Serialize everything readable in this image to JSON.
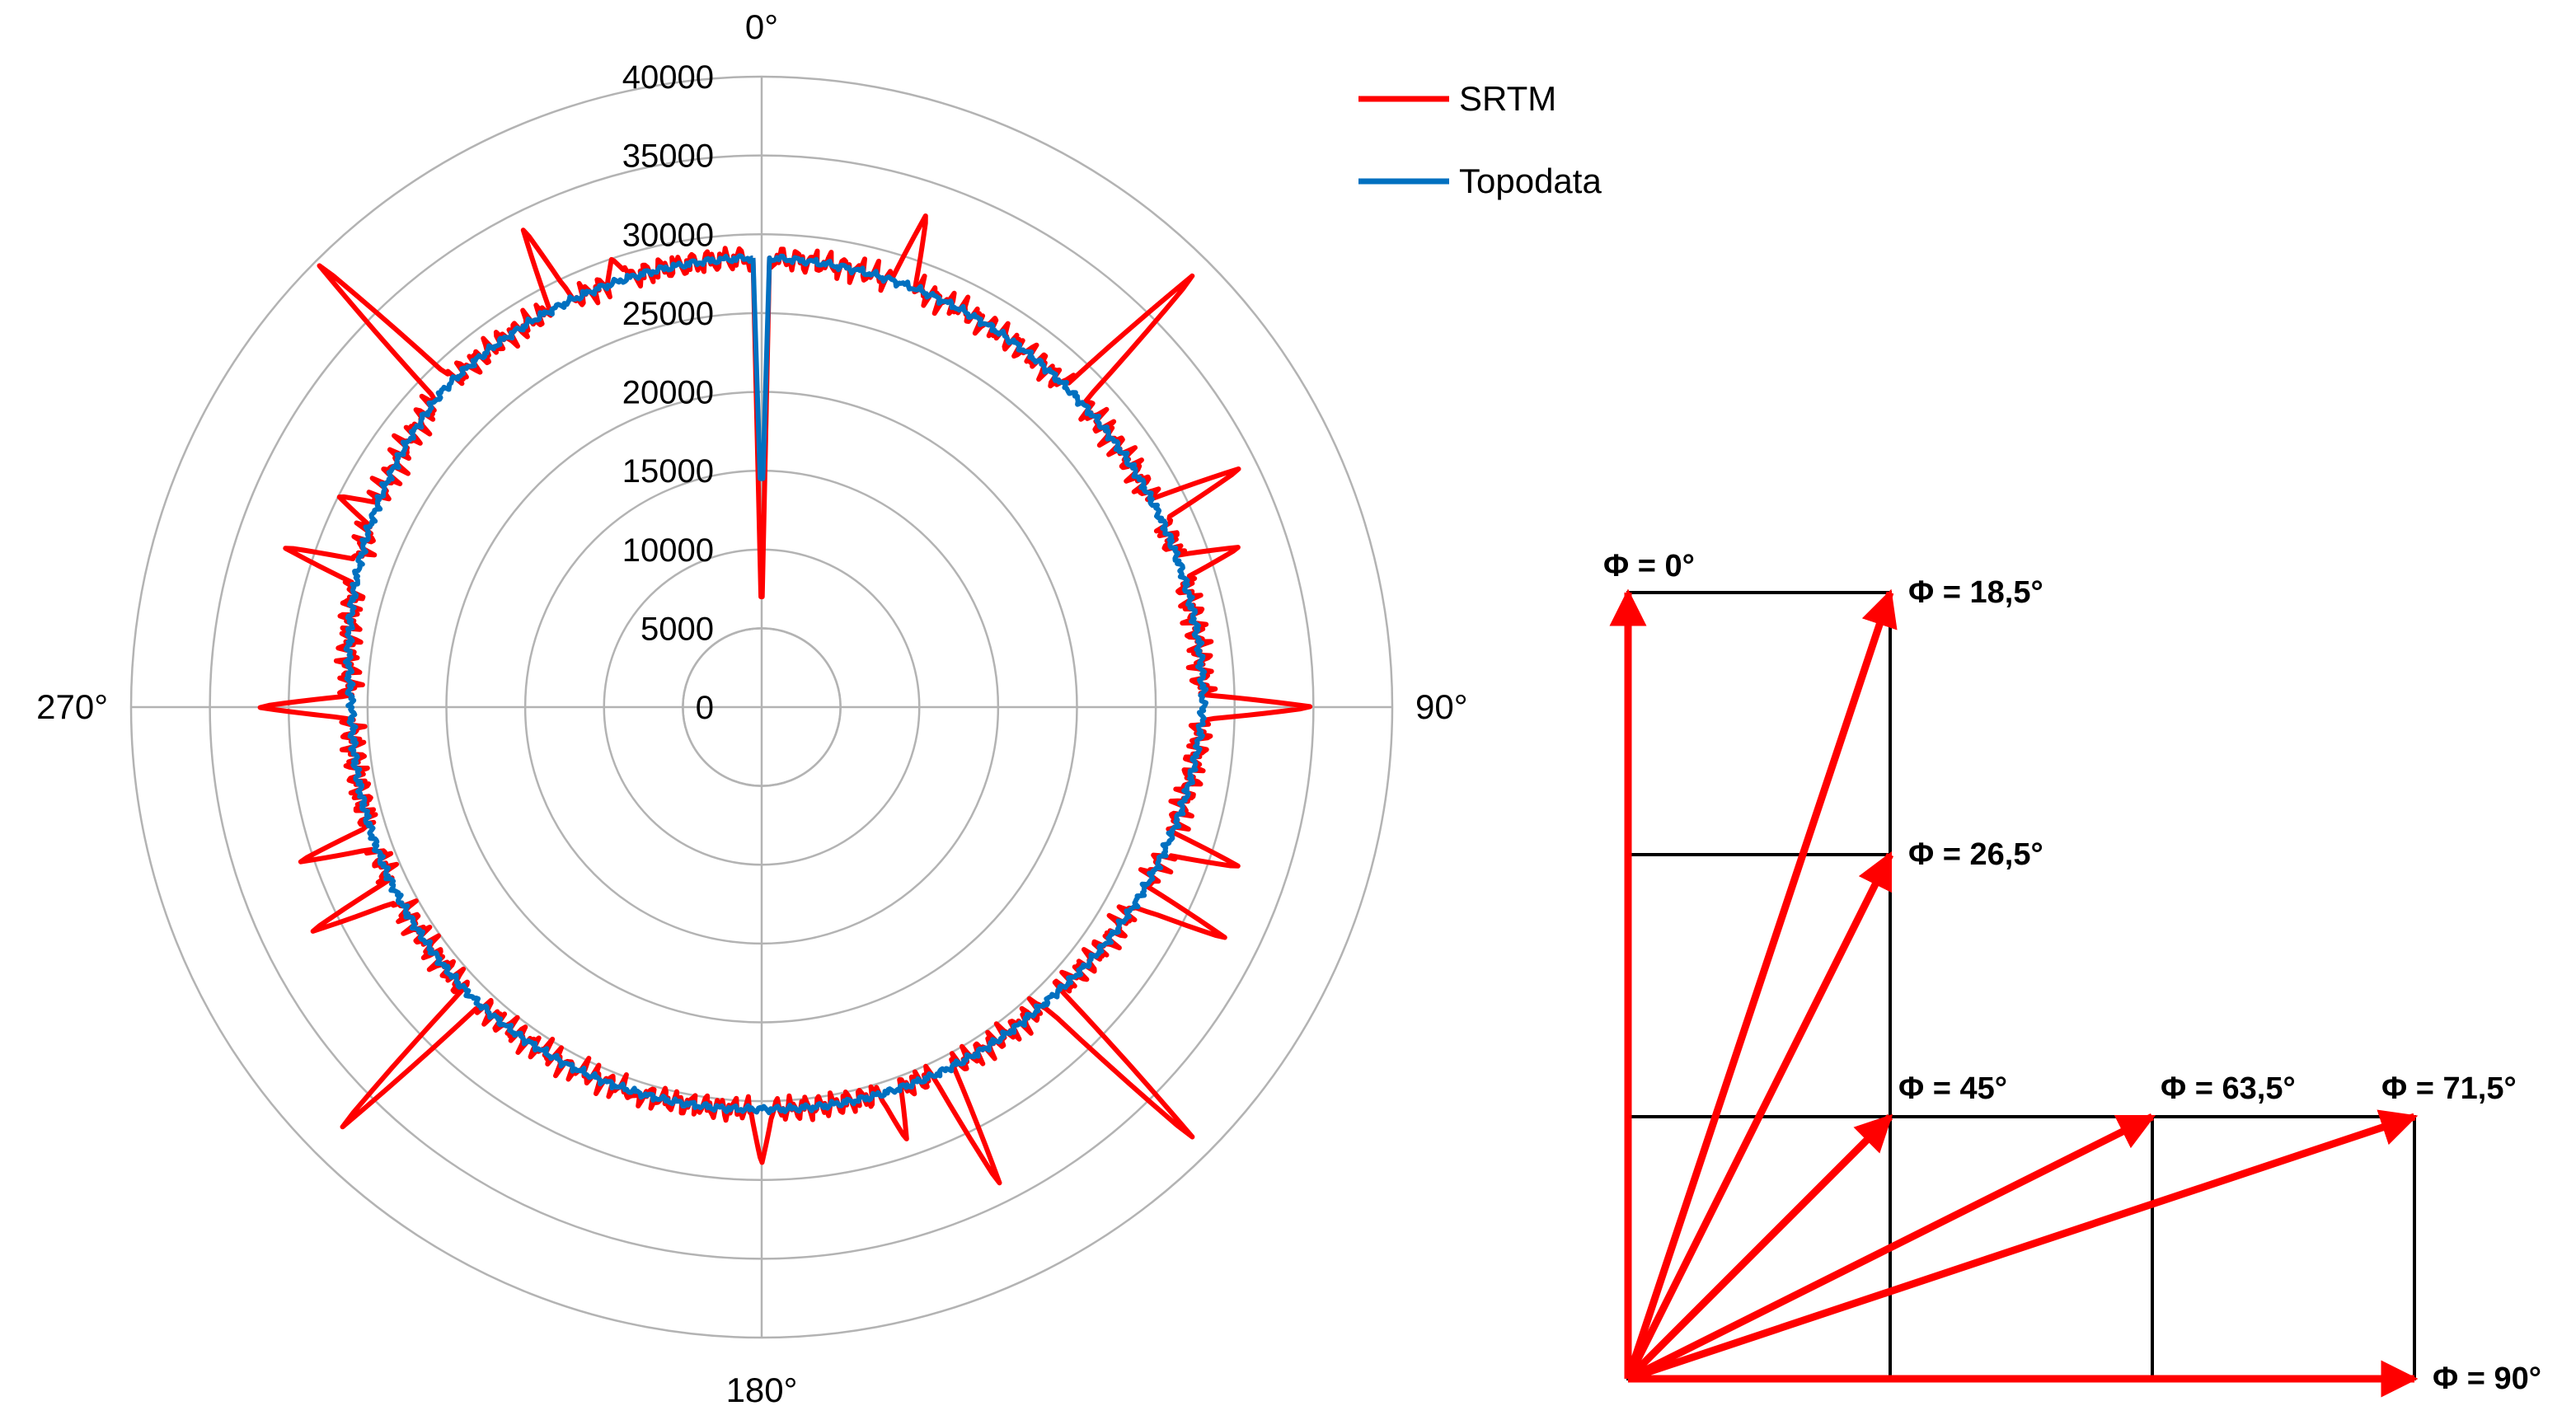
{
  "chart_data": [
    {
      "type": "polar-line",
      "title": "",
      "angle_unit": "degrees",
      "direction": "clockwise",
      "zero_location": "top",
      "radial_range": [
        0,
        40000
      ],
      "radial_ticks": [
        0,
        5000,
        10000,
        15000,
        20000,
        25000,
        30000,
        35000,
        40000
      ],
      "angle_labels": [
        {
          "angle": 0,
          "text": "0°"
        },
        {
          "angle": 90,
          "text": "90°"
        },
        {
          "angle": 180,
          "text": "180°"
        },
        {
          "angle": 270,
          "text": "270°"
        }
      ],
      "legend": {
        "placement": "top-right"
      },
      "baseline": {
        "angles": [
          0,
          45,
          90,
          135,
          180,
          225,
          270,
          315
        ],
        "values": [
          28500,
          28000,
          28000,
          26000,
          25500,
          26000,
          26000,
          28500
        ]
      },
      "series": [
        {
          "name": "SRTM",
          "color": "#ff0000",
          "dip": {
            "angle": 0,
            "value": 7000
          },
          "spikes": [
            {
              "angle": 18.5,
              "value": 33000
            },
            {
              "angle": 26.5,
              "value": 23000
            },
            {
              "angle": 45,
              "value": 39000
            },
            {
              "angle": 56,
              "value": 24000
            },
            {
              "angle": 63.5,
              "value": 34000
            },
            {
              "angle": 71.5,
              "value": 32000
            },
            {
              "angle": 90,
              "value": 35000
            },
            {
              "angle": 108.5,
              "value": 32000
            },
            {
              "angle": 116.5,
              "value": 33000
            },
            {
              "angle": 123.5,
              "value": 26000
            },
            {
              "angle": 135,
              "value": 39000
            },
            {
              "angle": 153.5,
              "value": 34000
            },
            {
              "angle": 161.5,
              "value": 29000
            },
            {
              "angle": 180,
              "value": 29000
            },
            {
              "angle": 198.5,
              "value": 26000
            },
            {
              "angle": 206.5,
              "value": 24000
            },
            {
              "angle": 225,
              "value": 38000
            },
            {
              "angle": 243.5,
              "value": 32000
            },
            {
              "angle": 251.5,
              "value": 31000
            },
            {
              "angle": 270,
              "value": 32000
            },
            {
              "angle": 288.5,
              "value": 32000
            },
            {
              "angle": 296.5,
              "value": 30000
            },
            {
              "angle": 315,
              "value": 40000
            },
            {
              "angle": 333.5,
              "value": 34000
            },
            {
              "angle": 341.5,
              "value": 30000
            }
          ]
        },
        {
          "name": "Topodata",
          "color": "#0070c0",
          "dip": {
            "angle": 0,
            "value": 14500
          },
          "spikes": []
        }
      ]
    },
    {
      "type": "vector-diagram",
      "title": "",
      "grid": {
        "columns": [
          0,
          1,
          2,
          3
        ],
        "rows": [
          0,
          1,
          2,
          3
        ],
        "cells": [
          {
            "col": 0,
            "row": 0
          },
          {
            "col": 0,
            "row": 1
          },
          {
            "col": 0,
            "row": 2
          },
          {
            "col": 1,
            "row": 2
          },
          {
            "col": 2,
            "row": 2
          }
        ]
      },
      "origin": [
        0,
        3
      ],
      "arrows": [
        {
          "label": "Φ = 0°",
          "to": [
            0,
            0
          ],
          "label_position": "top"
        },
        {
          "label": "Φ = 18,5°",
          "to": [
            1,
            0
          ],
          "label_position": "right"
        },
        {
          "label": "Φ = 26,5°",
          "to": [
            1,
            1
          ],
          "label_position": "right"
        },
        {
          "label": "Φ = 45°",
          "to": [
            1,
            2
          ],
          "label_position": "top"
        },
        {
          "label": "Φ = 63,5°",
          "to": [
            2,
            2
          ],
          "label_position": "top"
        },
        {
          "label": "Φ = 71,5°",
          "to": [
            3,
            2
          ],
          "label_position": "top"
        },
        {
          "label": "Φ = 90°",
          "to": [
            3,
            3
          ],
          "label_position": "right"
        }
      ],
      "arrow_color": "#ff0000"
    }
  ]
}
